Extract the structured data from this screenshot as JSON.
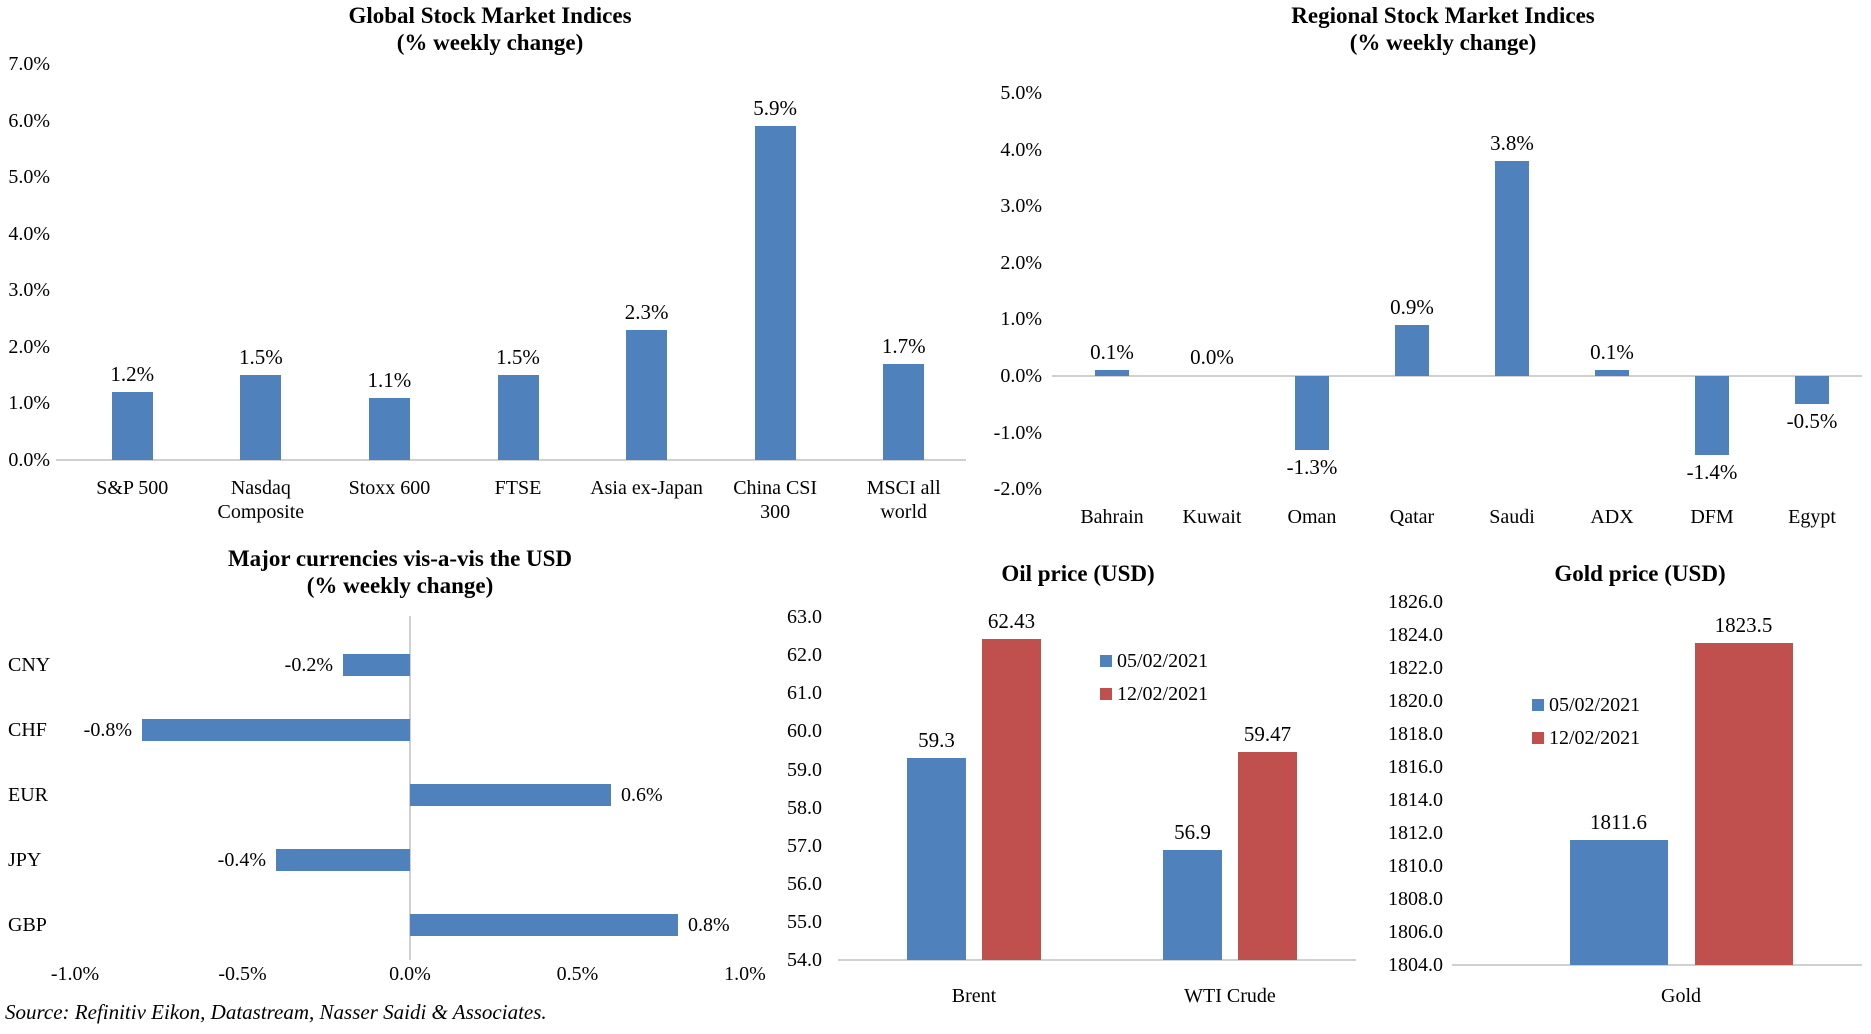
{
  "page": {
    "source_note": "Source: Refinitiv Eikon, Datastream, Nasser Saidi & Associates."
  },
  "colors": {
    "bar_blue": "#4f81bd",
    "bar_red": "#c0504d",
    "axis_gray": "#d0d0d0"
  },
  "legend_dates": [
    "05/02/2021",
    "12/02/2021"
  ],
  "chart_data": [
    {
      "id": "global-indices",
      "type": "bar",
      "title": "Global Stock Market Indices",
      "subtitle": "(% weekly change)",
      "categories": [
        [
          "S&P 500"
        ],
        [
          "Nasdaq",
          "Composite"
        ],
        [
          "Stoxx 600"
        ],
        [
          "FTSE"
        ],
        [
          "Asia ex-Japan"
        ],
        [
          "China CSI",
          "300"
        ],
        [
          "MSCI all",
          "world"
        ]
      ],
      "values": [
        1.2,
        1.5,
        1.1,
        1.5,
        2.3,
        5.9,
        1.7
      ],
      "labels": [
        "1.2%",
        "1.5%",
        "1.1%",
        "1.5%",
        "2.3%",
        "5.9%",
        "1.7%"
      ],
      "bar_color": "#4f81bd",
      "ylim": [
        0,
        7
      ],
      "ytick_step": 1,
      "yticks": [
        "0.0%",
        "1.0%",
        "2.0%",
        "3.0%",
        "4.0%",
        "5.0%",
        "6.0%",
        "7.0%"
      ],
      "grid": false,
      "legend": null
    },
    {
      "id": "regional-indices",
      "type": "bar",
      "title": "Regional Stock Market Indices",
      "subtitle": "(% weekly change)",
      "categories": [
        [
          "Bahrain"
        ],
        [
          "Kuwait"
        ],
        [
          "Oman"
        ],
        [
          "Qatar"
        ],
        [
          "Saudi"
        ],
        [
          "ADX"
        ],
        [
          "DFM"
        ],
        [
          "Egypt"
        ]
      ],
      "values": [
        0.1,
        0.0,
        -1.3,
        0.9,
        3.8,
        0.1,
        -1.4,
        -0.5
      ],
      "labels": [
        "0.1%",
        "0.0%",
        "-1.3%",
        "0.9%",
        "3.8%",
        "0.1%",
        "-1.4%",
        "-0.5%"
      ],
      "bar_color": "#4f81bd",
      "ylim": [
        -2,
        5
      ],
      "ytick_step": 1,
      "yticks": [
        "-2.0%",
        "-1.0%",
        "0.0%",
        "1.0%",
        "2.0%",
        "3.0%",
        "4.0%",
        "5.0%"
      ],
      "grid": false,
      "legend": null
    },
    {
      "id": "currencies",
      "type": "hbar",
      "title": "Major currencies vis-a-vis the USD",
      "subtitle": "(% weekly change)",
      "categories": [
        "CNY",
        "CHF",
        "EUR",
        "JPY",
        "GBP"
      ],
      "values": [
        -0.2,
        -0.8,
        0.6,
        -0.4,
        0.8
      ],
      "labels": [
        "-0.2%",
        "-0.8%",
        "0.6%",
        "-0.4%",
        "0.8%"
      ],
      "bar_color": "#4f81bd",
      "xlim": [
        -1,
        1
      ],
      "xtick_step": 0.5,
      "xticks": [
        "-1.0%",
        "-0.5%",
        "0.0%",
        "0.5%",
        "1.0%"
      ],
      "grid": false,
      "legend": null
    },
    {
      "id": "oil-price",
      "type": "bar",
      "title": "Oil price (USD)",
      "subtitle": null,
      "categories": [
        [
          "Brent"
        ],
        [
          "WTI Crude"
        ]
      ],
      "series": [
        {
          "name": "05/02/2021",
          "color": "#4f81bd",
          "values": [
            59.3,
            56.9
          ],
          "labels": [
            "59.3",
            "56.9"
          ]
        },
        {
          "name": "12/02/2021",
          "color": "#c0504d",
          "values": [
            62.43,
            59.47
          ],
          "labels": [
            "62.43",
            "59.47"
          ]
        }
      ],
      "ylim": [
        54,
        63
      ],
      "ytick_step": 1,
      "yticks": [
        "54.0",
        "55.0",
        "56.0",
        "57.0",
        "58.0",
        "59.0",
        "60.0",
        "61.0",
        "62.0",
        "63.0"
      ],
      "grid": false,
      "legend_position": "inside-left"
    },
    {
      "id": "gold-price",
      "type": "bar",
      "title": "Gold price (USD)",
      "subtitle": null,
      "categories": [
        [
          "Gold"
        ]
      ],
      "series": [
        {
          "name": "05/02/2021",
          "color": "#4f81bd",
          "values": [
            1811.6
          ],
          "labels": [
            "1811.6"
          ]
        },
        {
          "name": "12/02/2021",
          "color": "#c0504d",
          "values": [
            1823.5
          ],
          "labels": [
            "1823.5"
          ]
        }
      ],
      "ylim": [
        1804,
        1826
      ],
      "ytick_step": 2,
      "yticks": [
        "1804.0",
        "1806.0",
        "1808.0",
        "1810.0",
        "1812.0",
        "1814.0",
        "1816.0",
        "1818.0",
        "1820.0",
        "1822.0",
        "1824.0",
        "1826.0"
      ],
      "grid": false,
      "legend_position": "inside-left"
    }
  ]
}
